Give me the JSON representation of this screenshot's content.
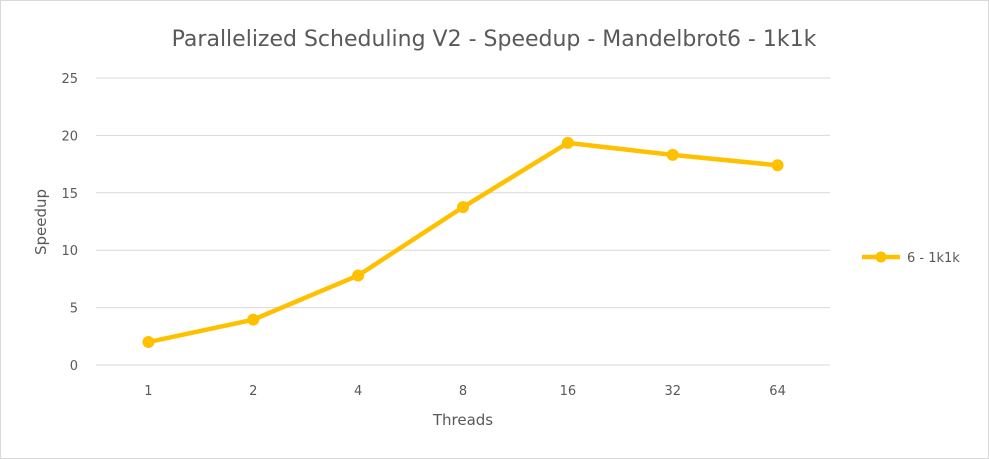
{
  "chart_data": {
    "type": "line",
    "title": "Parallelized Scheduling V2 - Speedup - Mandelbrot6 - 1k1k",
    "xlabel": "Threads",
    "ylabel": "Speedup",
    "categories": [
      "1",
      "2",
      "4",
      "8",
      "16",
      "32",
      "64"
    ],
    "ylim": [
      0,
      25
    ],
    "yticks": [
      0,
      5,
      10,
      15,
      20,
      25
    ],
    "grid": true,
    "legend_position": "right",
    "series": [
      {
        "name": "6 - 1k1k",
        "color": "#FFC000",
        "values": [
          2.0,
          3.95,
          7.8,
          13.75,
          19.35,
          18.3,
          17.4
        ]
      }
    ]
  }
}
